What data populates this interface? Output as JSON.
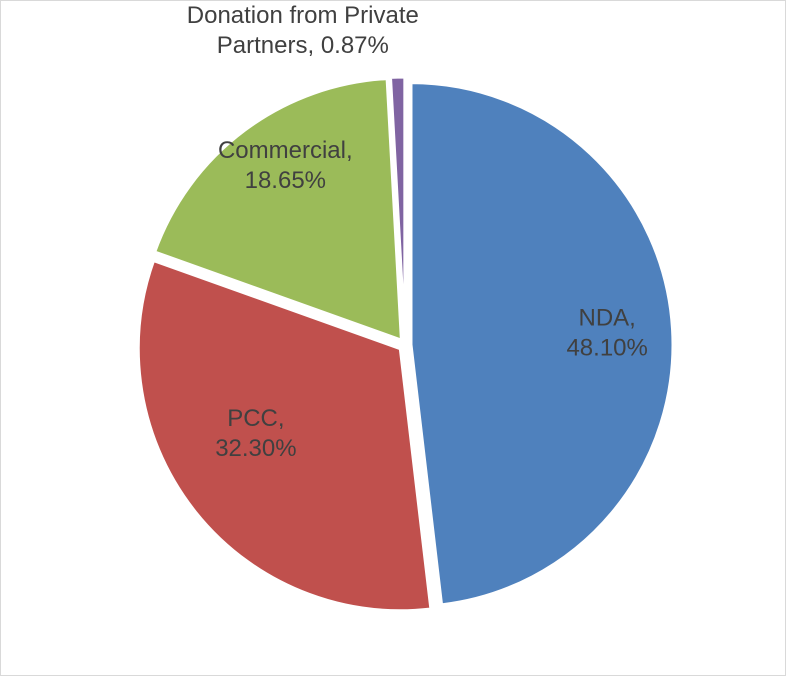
{
  "chart_data": {
    "type": "pie",
    "slices": [
      {
        "label": "NDA",
        "value": 48.1,
        "display": "48.10%",
        "color": "#4F81BD"
      },
      {
        "label": "PCC",
        "value": 32.3,
        "display": "32.30%",
        "color": "#C0504D"
      },
      {
        "label": "Commercial",
        "value": 18.65,
        "display": "18.65%",
        "color": "#9BBB59"
      },
      {
        "label": "Donation from Private Partners",
        "label_lines": [
          "Donation from Private",
          "Partners, 0.87%"
        ],
        "value": 0.87,
        "display": "0.87%",
        "color": "#8064A2"
      }
    ],
    "start_angle": "top, clockwise",
    "legend": "none"
  }
}
